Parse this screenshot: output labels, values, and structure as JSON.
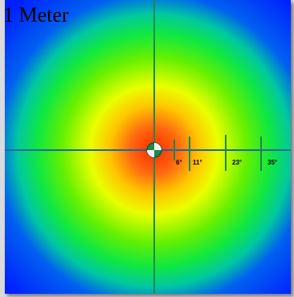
{
  "title": "1 Meter",
  "angle_labels": [
    {
      "text": "6°"
    },
    {
      "text": "11°"
    },
    {
      "text": "23°"
    },
    {
      "text": "35°"
    }
  ],
  "colors": {
    "center": "#ff2a00",
    "mid": "#ffe600",
    "outer": "#22ee00",
    "edge": "#0022ff",
    "crosshair": "#1a8a50"
  }
}
